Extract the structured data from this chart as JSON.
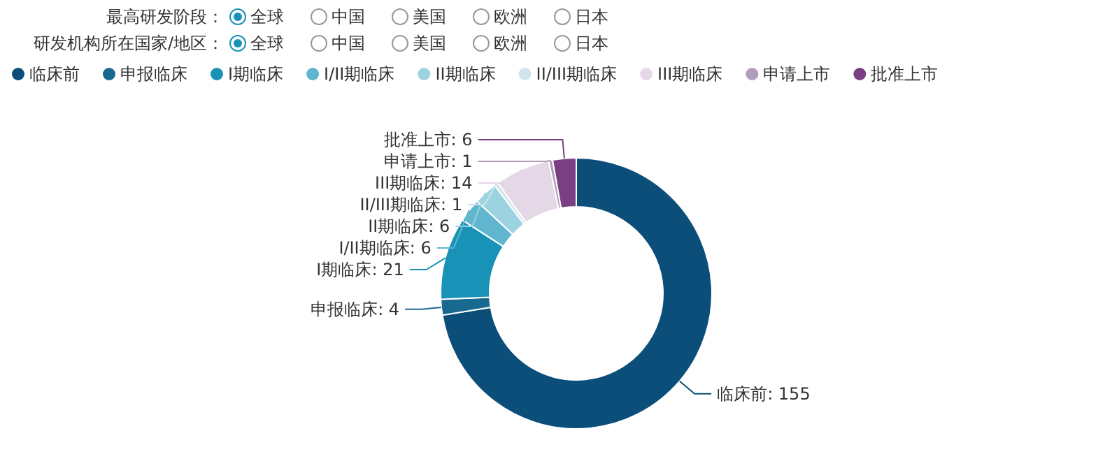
{
  "chart_data": {
    "type": "donut",
    "categories": [
      "临床前",
      "申报临床",
      "I期临床",
      "I/II期临床",
      "II期临床",
      "II/III期临床",
      "III期临床",
      "申请上市",
      "批准上市"
    ],
    "values": [
      155,
      4,
      21,
      6,
      6,
      1,
      14,
      1,
      6
    ],
    "colors": [
      "#0b4e7a",
      "#17698f",
      "#1893b7",
      "#5fb6ce",
      "#9dd2e1",
      "#d2e4eb",
      "#e5d8e6",
      "#b29db9",
      "#7a3e83"
    ],
    "value_labels": [
      "临床前: 155",
      "申报临床: 4",
      "I期临床: 21",
      "I/II期临床: 6",
      "II期临床: 6",
      "II/III期临床: 1",
      "III期临床: 14",
      "申请上市: 1",
      "批准上市: 6"
    ],
    "legend": "top left",
    "annotations": [
      "最高研发阶段：",
      "全球",
      "中国",
      "美国",
      "欧洲",
      "日本",
      "研发机构所在国家/地区：",
      "全球",
      "中国",
      "美国",
      "欧洲",
      "日本"
    ]
  }
}
